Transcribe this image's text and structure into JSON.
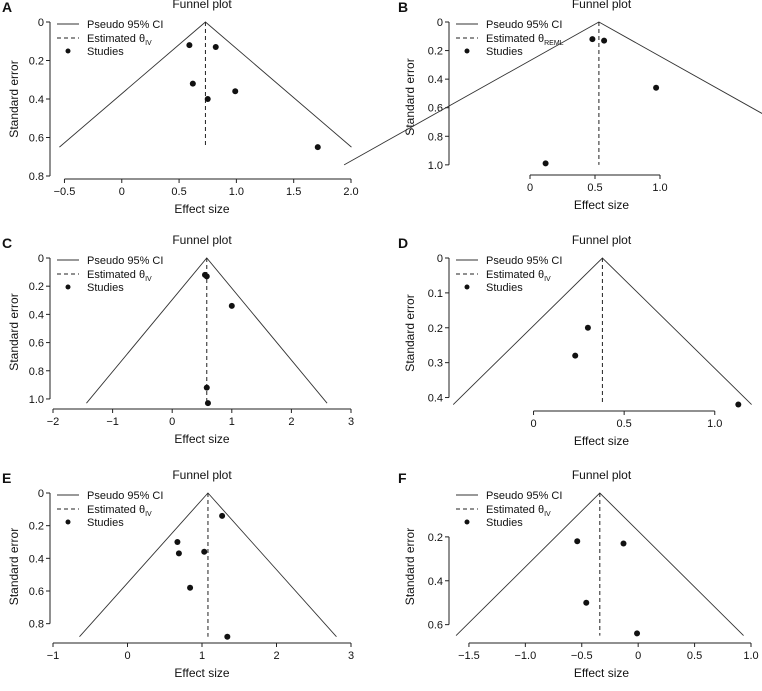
{
  "chart_data": [
    {
      "panel": "A",
      "type": "scatter",
      "title": "Funnel plot",
      "xlabel": "Effect size",
      "ylabel": "Standard error",
      "xlim": [
        -0.6,
        2.0
      ],
      "ylim": [
        0,
        0.8
      ],
      "xticks": [
        -0.5,
        0,
        0.5,
        1.0,
        1.5,
        2.0
      ],
      "xtick_labels": [
        "−0.5",
        "0",
        "0.5",
        "1.0",
        "1.5",
        "2.0"
      ],
      "yticks": [
        0,
        0.2,
        0.4,
        0.6,
        0.8
      ],
      "ytick_labels": [
        "0",
        "0.2",
        "0.4",
        "0.6",
        "0.8"
      ],
      "estimate": 0.73,
      "funnel_max_se": 0.65,
      "legend": {
        "ci": "Pseudo 95% CI",
        "est_prefix": "Estimated θ",
        "est_sub": "IV",
        "studies": "Studies"
      },
      "points": [
        [
          0.59,
          0.12
        ],
        [
          0.82,
          0.13
        ],
        [
          0.62,
          0.32
        ],
        [
          0.75,
          0.4
        ],
        [
          0.99,
          0.36
        ],
        [
          1.71,
          0.65
        ]
      ]
    },
    {
      "panel": "B",
      "type": "scatter",
      "title": "Funnel plot",
      "xlabel": "Effect size",
      "ylabel": "Standard error",
      "xlim": [
        -0.6,
        1.7
      ],
      "ylim": [
        0,
        1.05
      ],
      "xticks": [
        0,
        0.5,
        1.0
      ],
      "xtick_labels": [
        "0",
        "0.5",
        "1.0"
      ],
      "yticks": [
        0,
        0.2,
        0.4,
        0.6,
        0.8,
        1.0
      ],
      "ytick_labels": [
        "0",
        "0.2",
        "0.4",
        "0.6",
        "0.8",
        "1.0"
      ],
      "estimate": 0.53,
      "funnel_max_se": 1.0,
      "legend": {
        "ci": "Pseudo 95% CI",
        "est_prefix": "Estimated θ",
        "est_sub": "REML",
        "studies": "Studies"
      },
      "points": [
        [
          0.48,
          0.12
        ],
        [
          0.57,
          0.13
        ],
        [
          0.97,
          0.46
        ],
        [
          0.12,
          0.99
        ]
      ]
    },
    {
      "panel": "C",
      "type": "scatter",
      "title": "Funnel plot",
      "xlabel": "Effect size",
      "ylabel": "Standard error",
      "xlim": [
        -2.0,
        3.0
      ],
      "ylim": [
        0,
        1.05
      ],
      "xticks": [
        -2,
        -1,
        0,
        1,
        2,
        3
      ],
      "xtick_labels": [
        "−2",
        "−1",
        "0",
        "1",
        "2",
        "3"
      ],
      "yticks": [
        0,
        0.2,
        0.4,
        0.6,
        0.8,
        1.0
      ],
      "ytick_labels": [
        "0",
        "0.2",
        "0.4",
        "0.6",
        "0.8",
        "1.0"
      ],
      "estimate": 0.58,
      "funnel_max_se": 1.03,
      "legend": {
        "ci": "Pseudo 95% CI",
        "est_prefix": "Estimated θ",
        "est_sub": "IV",
        "studies": "Studies"
      },
      "points": [
        [
          0.55,
          0.12
        ],
        [
          0.58,
          0.13
        ],
        [
          1.0,
          0.34
        ],
        [
          0.58,
          0.92
        ],
        [
          0.6,
          1.03
        ]
      ]
    },
    {
      "panel": "D",
      "type": "scatter",
      "title": "Funnel plot",
      "xlabel": "Effect size",
      "ylabel": "Standard error",
      "xlim": [
        -0.45,
        1.2
      ],
      "ylim": [
        0,
        0.43
      ],
      "xticks": [
        0,
        0.5,
        1.0
      ],
      "xtick_labels": [
        "0",
        "0.5",
        "1.0"
      ],
      "yticks": [
        0,
        0.1,
        0.2,
        0.3,
        0.4
      ],
      "ytick_labels": [
        "0",
        "0.1",
        "0.2",
        "0.3",
        "0.4"
      ],
      "estimate": 0.38,
      "funnel_max_se": 0.42,
      "legend": {
        "ci": "Pseudo 95% CI",
        "est_prefix": "Estimated θ",
        "est_sub": "IV",
        "studies": "Studies"
      },
      "points": [
        [
          0.3,
          0.2
        ],
        [
          0.23,
          0.28
        ],
        [
          1.13,
          0.42
        ]
      ]
    },
    {
      "panel": "E",
      "type": "scatter",
      "title": "Funnel plot",
      "xlabel": "Effect size",
      "ylabel": "Standard error",
      "xlim": [
        -1.0,
        3.0
      ],
      "ylim": [
        0,
        0.9
      ],
      "xticks": [
        -1,
        0,
        1,
        2,
        3
      ],
      "xtick_labels": [
        "−1",
        "0",
        "1",
        "2",
        "3"
      ],
      "yticks": [
        0,
        0.2,
        0.4,
        0.6,
        0.8
      ],
      "ytick_labels": [
        "0",
        "0.2",
        "0.4",
        "0.6",
        "0.8"
      ],
      "estimate": 1.08,
      "funnel_max_se": 0.88,
      "legend": {
        "ci": "Pseudo 95% CI",
        "est_prefix": "Estimated θ",
        "est_sub": "IV",
        "studies": "Studies"
      },
      "points": [
        [
          1.27,
          0.14
        ],
        [
          0.67,
          0.3
        ],
        [
          0.69,
          0.37
        ],
        [
          1.03,
          0.36
        ],
        [
          0.84,
          0.58
        ],
        [
          1.34,
          0.88
        ]
      ]
    },
    {
      "panel": "F",
      "type": "scatter",
      "title": "Funnel plot",
      "xlabel": "Effect size",
      "ylabel": "Standard error",
      "xlim": [
        -1.65,
        1.0
      ],
      "ylim": [
        0,
        0.67
      ],
      "xticks": [
        -1.5,
        -1.0,
        -0.5,
        0,
        0.5,
        1.0
      ],
      "xtick_labels": [
        "−1.5",
        "−1.0",
        "−0.5",
        "0",
        "0.5",
        "1.0"
      ],
      "yticks": [
        0.2,
        0.4,
        0.6
      ],
      "ytick_labels": [
        "0.2",
        "0.4",
        "0.6"
      ],
      "estimate": -0.34,
      "funnel_max_se": 0.65,
      "legend": {
        "ci": "Pseudo 95% CI",
        "est_prefix": "Estimated θ",
        "est_sub": "IV",
        "studies": "Studies"
      },
      "points": [
        [
          -0.54,
          0.22
        ],
        [
          -0.13,
          0.23
        ],
        [
          -0.46,
          0.5
        ],
        [
          -0.01,
          0.64
        ]
      ]
    }
  ]
}
